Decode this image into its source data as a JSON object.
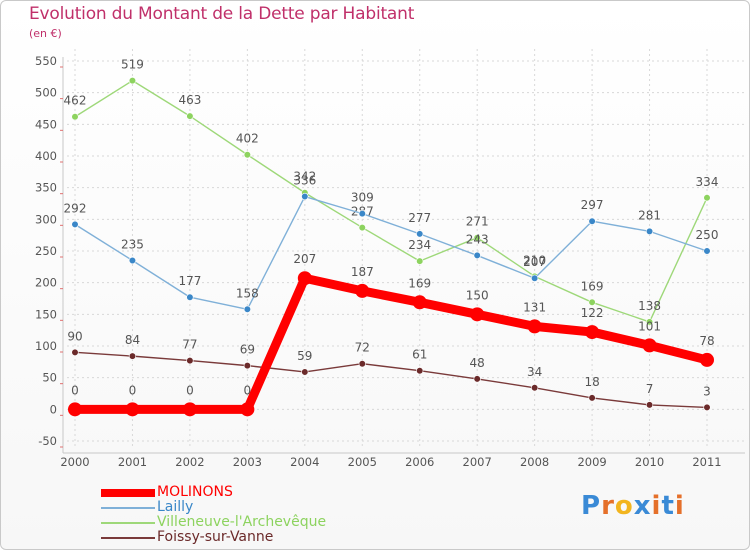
{
  "header": {
    "title": "Evolution du Montant de la Dette par Habitant",
    "unit": "(en €)"
  },
  "logo": {
    "letters": [
      "P",
      "r",
      "o",
      "x",
      "i",
      "t",
      "i"
    ],
    "colors": [
      "#3a8ad6",
      "#e5702a",
      "#f2b51f",
      "#3a8ad6",
      "#e5702a",
      "#3a8ad6",
      "#e5702a"
    ]
  },
  "chart_data": {
    "type": "line",
    "title": "Evolution du Montant de la Dette par Habitant",
    "ylabel": "(en €)",
    "xlabel": "",
    "x": [
      "2000",
      "2001",
      "2002",
      "2003",
      "2004",
      "2005",
      "2006",
      "2007",
      "2008",
      "2009",
      "2010",
      "2011"
    ],
    "y_ticks": [
      -50,
      0,
      50,
      100,
      150,
      200,
      250,
      300,
      350,
      400,
      450,
      500,
      550
    ],
    "ylim": [
      -50,
      550
    ],
    "grid": true,
    "legend_position": "bottom-left",
    "series": [
      {
        "name": "Villeneuve-l'Archevêque",
        "color": "#8dd35f",
        "line_color": "#9ed879",
        "values": [
          462,
          519,
          463,
          402,
          342,
          287,
          234,
          271,
          210,
          169,
          138,
          334
        ],
        "label_offsets": [
          -1,
          -1,
          -1,
          -1,
          -1,
          -1,
          -1,
          -1,
          -1,
          -1,
          -1,
          -1
        ]
      },
      {
        "name": "Lailly",
        "color": "#3a87c8",
        "line_color": "#7fb0d8",
        "values": [
          292,
          235,
          177,
          158,
          336,
          309,
          277,
          243,
          207,
          297,
          281,
          250
        ],
        "label_offsets": [
          -1,
          -1,
          -1,
          -1,
          -1,
          -1,
          -1,
          -1,
          -1,
          -1,
          -1,
          -1
        ]
      },
      {
        "name": "Foissy-sur-Vanne",
        "color": "#6b2a2a",
        "line_color": "#7a3a3a",
        "values": [
          90,
          84,
          77,
          69,
          59,
          72,
          61,
          48,
          34,
          18,
          7,
          3
        ],
        "label_offsets": [
          -1,
          -1,
          -1,
          -1,
          -1,
          -1,
          -1,
          -1,
          -1,
          -1,
          -1,
          -1
        ]
      },
      {
        "name": "MOLINONS",
        "color": "#ff0000",
        "line_color": "#ff0000",
        "bold": true,
        "values": [
          0,
          0,
          0,
          0,
          207,
          187,
          169,
          150,
          131,
          122,
          101,
          78
        ],
        "label_offsets": [
          -1,
          -1,
          -1,
          -1,
          -1,
          -1,
          -1,
          -1,
          -1,
          -1,
          -1,
          -1
        ]
      }
    ],
    "legend_order": [
      "MOLINONS",
      "Lailly",
      "Villeneuve-l'Archevêque",
      "Foissy-sur-Vanne"
    ]
  }
}
